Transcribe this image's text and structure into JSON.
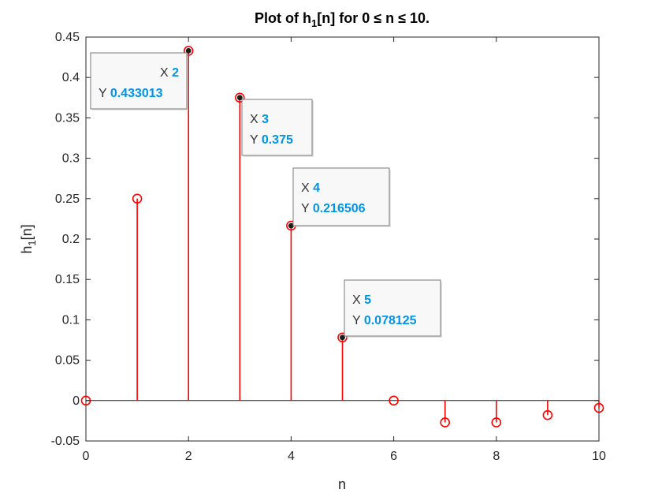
{
  "chart_data": {
    "type": "stem",
    "title": "Plot of h₁[n] for 0 ≤ n ≤ 10.",
    "title_parts": {
      "pre": "Plot of h",
      "sub": "1",
      "post": "[n] for 0 ≤ n ≤ 10."
    },
    "xlabel": "n",
    "ylabel_parts": {
      "base": "h",
      "sub": "1",
      "post": "[n]"
    },
    "xlim": [
      0,
      10
    ],
    "ylim": [
      -0.05,
      0.45
    ],
    "xticks": [
      0,
      2,
      4,
      6,
      8,
      10
    ],
    "yticks": [
      -0.05,
      0,
      0.05,
      0.1,
      0.15,
      0.2,
      0.25,
      0.3,
      0.35,
      0.4,
      0.45
    ],
    "ytick_labels": [
      "-0.05",
      "0",
      "0.05",
      "0.1",
      "0.15",
      "0.2",
      "0.25",
      "0.3",
      "0.35",
      "0.4",
      "0.45"
    ],
    "grid": false,
    "x": [
      0,
      1,
      2,
      3,
      4,
      5,
      6,
      7,
      8,
      9,
      10
    ],
    "values": [
      0,
      0.25,
      0.433013,
      0.375,
      0.216506,
      0.078125,
      0,
      -0.027,
      -0.027,
      -0.018,
      -0.009
    ],
    "stem_color": "#ff0000",
    "datatip_marker_color": "#1a1a1a",
    "datatip_value_color": "#0094e6",
    "datatips": [
      {
        "x_label": "X",
        "x_value": "2",
        "y_label": "Y",
        "y_value": "0.433013",
        "index": 2
      },
      {
        "x_label": "X",
        "x_value": "3",
        "y_label": "Y",
        "y_value": "0.375",
        "index": 3
      },
      {
        "x_label": "X",
        "x_value": "4",
        "y_label": "Y",
        "y_value": "0.216506",
        "index": 4
      },
      {
        "x_label": "X",
        "x_value": "5",
        "y_label": "Y",
        "y_value": "0.078125",
        "index": 5
      }
    ]
  }
}
